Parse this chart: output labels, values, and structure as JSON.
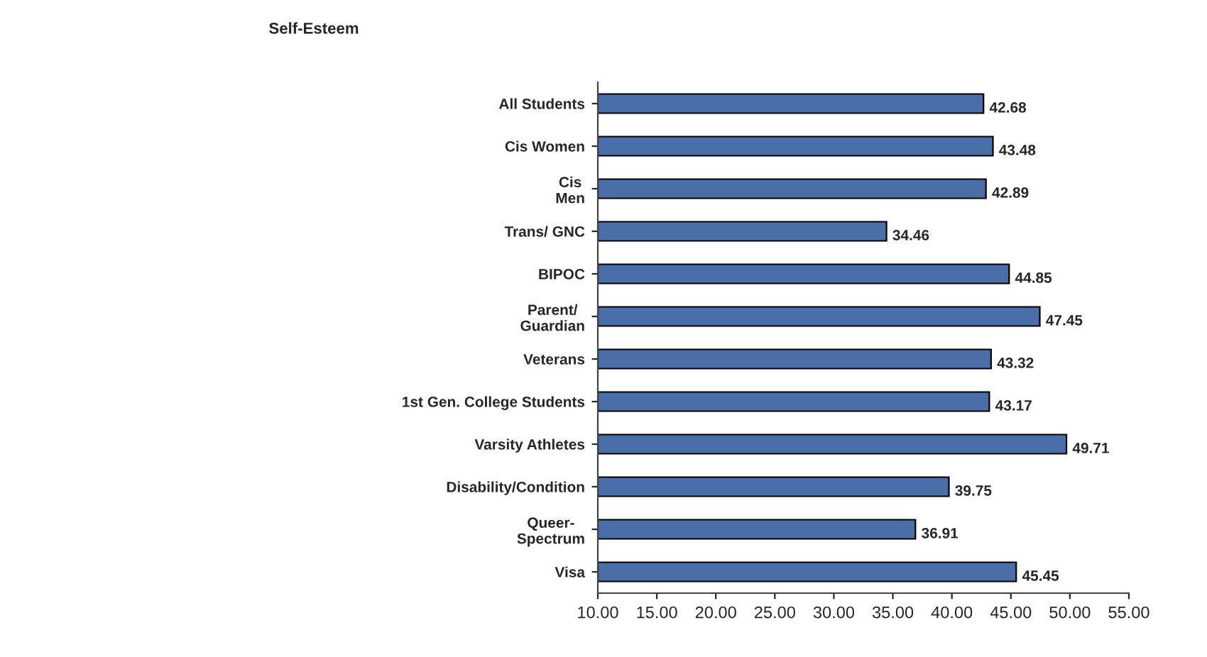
{
  "chart_data": {
    "type": "bar",
    "orientation": "horizontal",
    "title": "Self-Esteem",
    "categories": [
      "All Students",
      "Cis Women",
      "Cis\nMen",
      "Trans/ GNC",
      "BIPOC",
      "Parent/\nGuardian",
      "Veterans",
      "1st Gen. College Students",
      "Varsity Athletes",
      "Disability/Condition",
      "Queer-\nSpectrum",
      "Visa"
    ],
    "values": [
      42.68,
      43.48,
      42.89,
      34.46,
      44.85,
      47.45,
      43.32,
      43.17,
      49.71,
      39.75,
      36.91,
      45.45
    ],
    "color": "#4a6fa8",
    "xlim": [
      10,
      55
    ],
    "xticks": [
      {
        "value": 10,
        "label": "10.00"
      },
      {
        "value": 15,
        "label": "15.00"
      },
      {
        "value": 20,
        "label": "20.00"
      },
      {
        "value": 25,
        "label": "25.00"
      },
      {
        "value": 30,
        "label": "30.00"
      },
      {
        "value": 35,
        "label": "35.00"
      },
      {
        "value": 40,
        "label": "40.00"
      },
      {
        "value": 45,
        "label": "45.00"
      },
      {
        "value": 50,
        "label": "50.00"
      },
      {
        "value": 55,
        "label": "55.00"
      }
    ],
    "data_labels": true,
    "grid": false,
    "legend": false
  }
}
